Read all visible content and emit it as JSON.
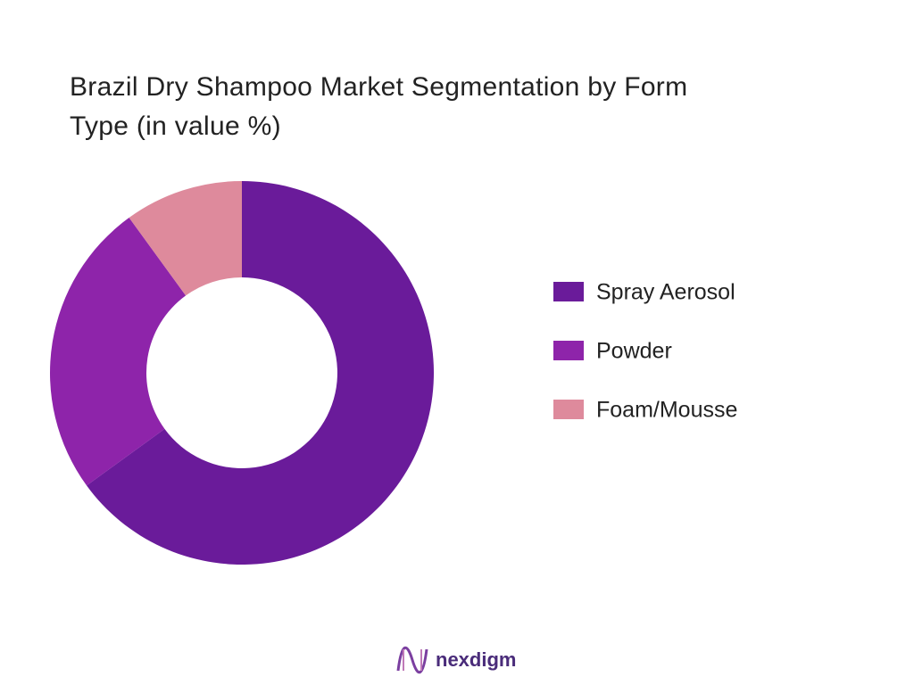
{
  "chart_data": {
    "type": "donut",
    "title": "Brazil Dry Shampoo Market Segmentation by Form Type (in value %)",
    "categories": [
      "Spray Aerosol",
      "Powder",
      "Foam/Mousse"
    ],
    "values": [
      65,
      25,
      10
    ],
    "colors": [
      "#6a1b9a",
      "#8e24aa",
      "#de8a9c"
    ],
    "legend": "right"
  },
  "logo": "nexdigm"
}
